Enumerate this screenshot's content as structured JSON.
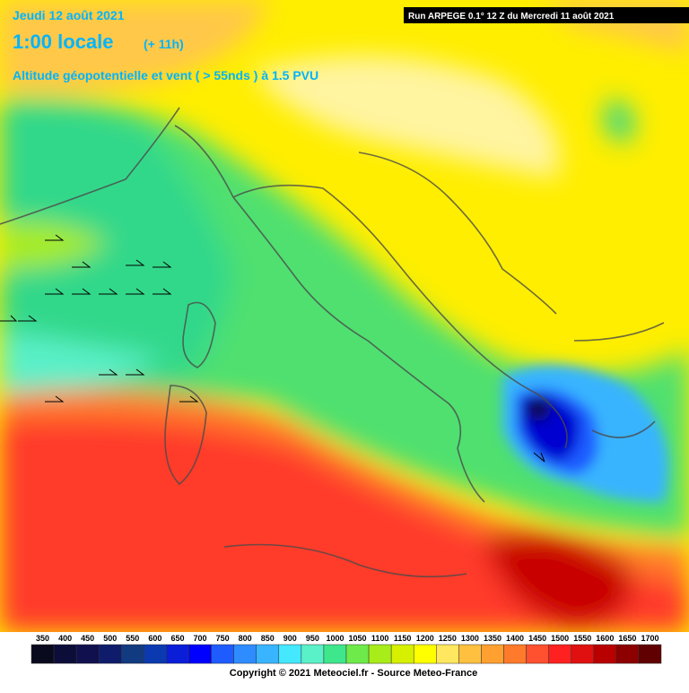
{
  "header": {
    "date": "Jeudi 12 août 2021",
    "time": "1:00 locale",
    "lead": "(+ 11h)",
    "field": "Altitude géopotentielle et vent ( > 55nds ) à 1.5 PVU",
    "run": "Run ARPEGE 0.1° 12 Z du Mercredi 11 août 2021"
  },
  "legend": {
    "values": [
      350,
      400,
      450,
      500,
      550,
      600,
      650,
      700,
      750,
      800,
      850,
      900,
      950,
      1000,
      1050,
      1100,
      1150,
      1200,
      1250,
      1300,
      1350,
      1400,
      1450,
      1500,
      1550,
      1600,
      1650,
      1700
    ],
    "colors": [
      "#0a0a1e",
      "#0d0d3a",
      "#10104f",
      "#0f1c6b",
      "#123a80",
      "#0b3ab0",
      "#0a1ed8",
      "#0000ff",
      "#1f5cff",
      "#2f8cff",
      "#39b4ff",
      "#44e8ff",
      "#5af0c8",
      "#3ee68c",
      "#6eea4a",
      "#a8ec1a",
      "#d6f000",
      "#ffff00",
      "#ffe860",
      "#ffc040",
      "#ffa030",
      "#ff7a2a",
      "#ff5030",
      "#ff2020",
      "#e01010",
      "#b80000",
      "#8c0000",
      "#600000"
    ]
  },
  "footer": {
    "copyright": "Copyright © 2021 Meteociel.fr - Source Meteo-France"
  }
}
